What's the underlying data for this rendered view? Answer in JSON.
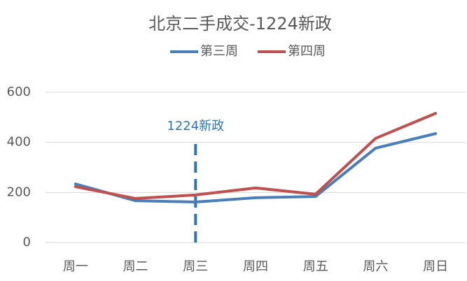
{
  "chart_data": {
    "type": "line",
    "title": "北京二手成交-1224新政",
    "categories": [
      "周一",
      "周二",
      "周三",
      "周四",
      "周五",
      "周六",
      "周日"
    ],
    "series": [
      {
        "name": "第三周",
        "color": "#4a7ebb",
        "values": [
          234,
          167,
          162,
          179,
          184,
          377,
          435
        ]
      },
      {
        "name": "第四周",
        "color": "#c0504d",
        "values": [
          223,
          176,
          190,
          218,
          193,
          416,
          516
        ]
      }
    ],
    "ylim": [
      0,
      600
    ],
    "yticks": [
      0,
      200,
      400,
      600
    ],
    "grid": true,
    "annotation": {
      "text": "1224新政",
      "category": "周三",
      "color": "#2e75b6"
    }
  }
}
